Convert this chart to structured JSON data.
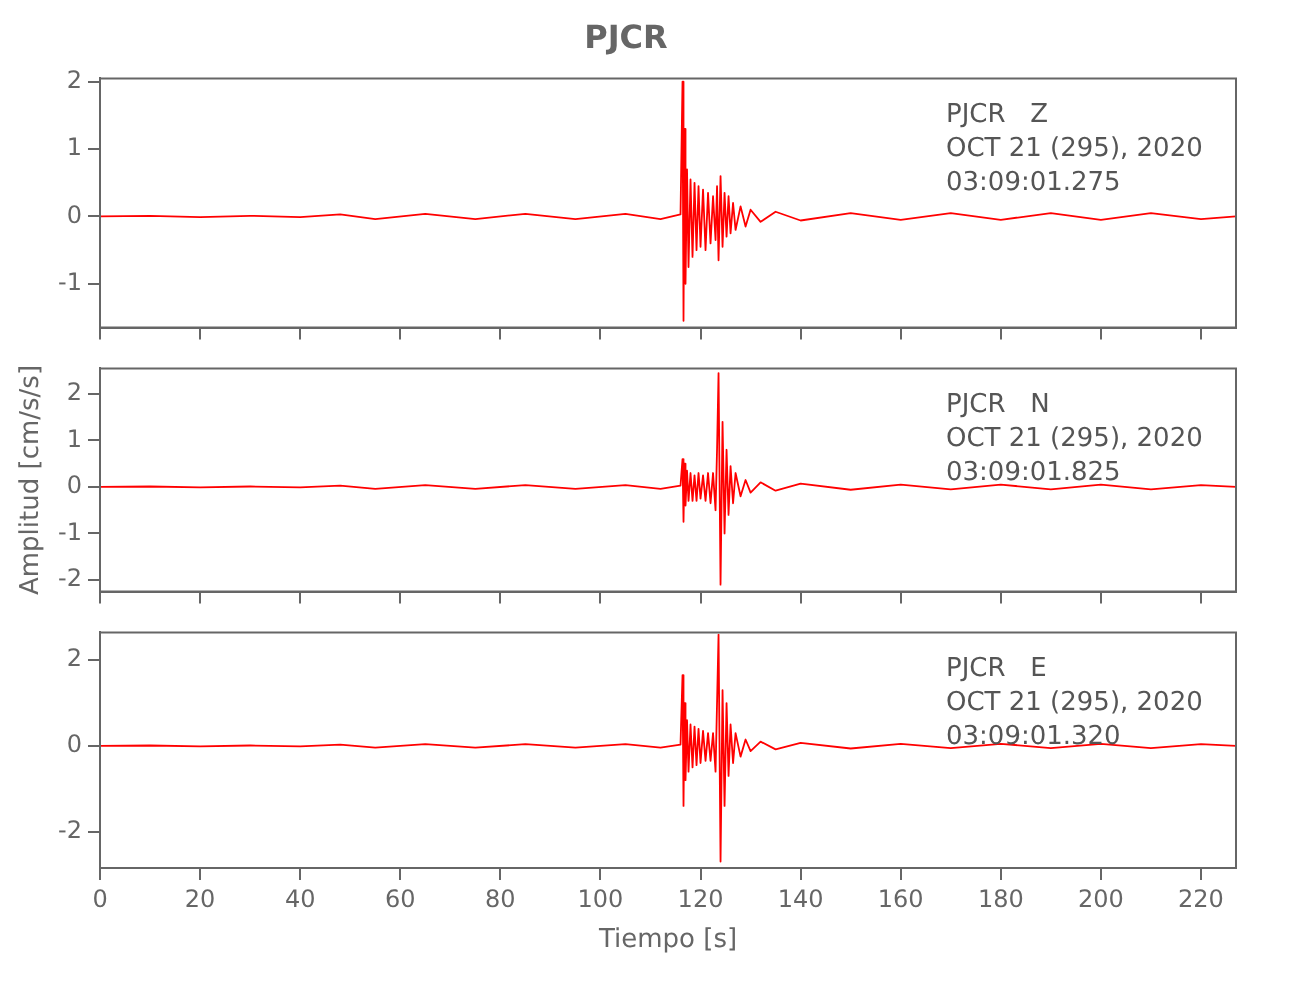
{
  "chart_data": [
    {
      "type": "line",
      "title": "PJCR",
      "annotations": [
        "PJCR   Z",
        "OCT 21 (295), 2020",
        "03:09:01.275"
      ],
      "color": "#ff0000",
      "xlim": [
        0,
        227
      ],
      "ylim": [
        -1.65,
        2.05
      ],
      "yticks": [
        -1,
        0,
        1,
        2
      ],
      "xticks": [
        {
          "value": 0,
          "label": null
        },
        {
          "value": 20,
          "label": null
        },
        {
          "value": 40,
          "label": null
        },
        {
          "value": 60,
          "label": null
        },
        {
          "value": 80,
          "label": null
        },
        {
          "value": 100,
          "label": null
        },
        {
          "value": 120,
          "label": null
        },
        {
          "value": 140,
          "label": null
        },
        {
          "value": 160,
          "label": null
        },
        {
          "value": 180,
          "label": null
        },
        {
          "value": 200,
          "label": null
        },
        {
          "value": 220,
          "label": null
        }
      ],
      "tick_labels": "y",
      "x": [
        0,
        10,
        20,
        30,
        40,
        48,
        55,
        65,
        75,
        85,
        95,
        105,
        112,
        116,
        116.4,
        116.6,
        116.8,
        117,
        117.3,
        117.6,
        118,
        118.4,
        118.8,
        119.2,
        119.6,
        120,
        120.5,
        121,
        121.5,
        122,
        122.5,
        123,
        123.3,
        123.6,
        124,
        124.4,
        124.8,
        125.2,
        125.6,
        126,
        126.5,
        127,
        128,
        129,
        130,
        132,
        135,
        140,
        150,
        160,
        170,
        180,
        190,
        200,
        210,
        220,
        227
      ],
      "values": [
        0,
        0.01,
        -0.01,
        0.01,
        -0.01,
        0.03,
        -0.04,
        0.04,
        -0.04,
        0.04,
        -0.04,
        0.04,
        -0.04,
        0.03,
        2.0,
        -1.55,
        1.3,
        -1.0,
        0.7,
        -0.75,
        0.55,
        -0.6,
        0.5,
        -0.5,
        0.45,
        -0.45,
        0.4,
        -0.5,
        0.35,
        -0.4,
        0.3,
        -0.35,
        0.45,
        -0.65,
        0.6,
        -0.45,
        0.35,
        -0.3,
        0.3,
        -0.25,
        0.2,
        -0.2,
        0.15,
        -0.15,
        0.1,
        -0.08,
        0.07,
        -0.06,
        0.05,
        -0.05,
        0.05,
        -0.05,
        0.05,
        -0.05,
        0.05,
        -0.04,
        0
      ]
    },
    {
      "type": "line",
      "ylabel": "Amplitud [cm/s/s]",
      "annotations": [
        "PJCR   N",
        "OCT 21 (295), 2020",
        "03:09:01.825"
      ],
      "color": "#ff0000",
      "xlim": [
        0,
        227
      ],
      "ylim": [
        -2.25,
        2.55
      ],
      "yticks": [
        -2,
        -1,
        0,
        1,
        2
      ],
      "xticks": [
        {
          "value": 0,
          "label": null
        },
        {
          "value": 20,
          "label": null
        },
        {
          "value": 40,
          "label": null
        },
        {
          "value": 60,
          "label": null
        },
        {
          "value": 80,
          "label": null
        },
        {
          "value": 100,
          "label": null
        },
        {
          "value": 120,
          "label": null
        },
        {
          "value": 140,
          "label": null
        },
        {
          "value": 160,
          "label": null
        },
        {
          "value": 180,
          "label": null
        },
        {
          "value": 200,
          "label": null
        },
        {
          "value": 220,
          "label": null
        }
      ],
      "tick_labels": "y",
      "x": [
        0,
        10,
        20,
        30,
        40,
        48,
        55,
        65,
        75,
        85,
        95,
        105,
        112,
        116,
        116.4,
        116.6,
        116.8,
        117,
        117.3,
        117.6,
        118,
        118.4,
        118.8,
        119.2,
        119.6,
        120,
        120.5,
        121,
        121.5,
        122,
        122.5,
        123,
        123.3,
        123.6,
        124,
        124.4,
        124.8,
        125.2,
        125.6,
        126,
        126.5,
        127,
        128,
        129,
        130,
        132,
        135,
        140,
        150,
        160,
        170,
        180,
        190,
        200,
        210,
        220,
        227
      ],
      "values": [
        0,
        0.01,
        -0.01,
        0.01,
        -0.01,
        0.03,
        -0.04,
        0.04,
        -0.04,
        0.04,
        -0.04,
        0.04,
        -0.04,
        0.03,
        0.6,
        -0.75,
        0.5,
        -0.4,
        0.35,
        -0.3,
        0.3,
        -0.3,
        0.25,
        -0.3,
        0.3,
        -0.25,
        0.25,
        -0.3,
        0.3,
        -0.35,
        0.3,
        -0.5,
        0.8,
        2.45,
        -2.1,
        1.4,
        -1.0,
        0.8,
        -0.6,
        0.45,
        -0.35,
        0.3,
        -0.2,
        0.15,
        -0.12,
        0.1,
        -0.08,
        0.07,
        -0.06,
        0.05,
        -0.05,
        0.05,
        -0.05,
        0.05,
        -0.05,
        0.04,
        0
      ]
    },
    {
      "type": "line",
      "xlabel": "Tiempo [s]",
      "annotations": [
        "PJCR   E",
        "OCT 21 (295), 2020",
        "03:09:01.320"
      ],
      "color": "#ff0000",
      "xlim": [
        0,
        227
      ],
      "ylim": [
        -2.85,
        2.65
      ],
      "yticks": [
        -2,
        0,
        2
      ],
      "xticks": [
        0,
        20,
        40,
        60,
        80,
        100,
        120,
        140,
        160,
        180,
        200,
        220
      ],
      "x": [
        0,
        10,
        20,
        30,
        40,
        48,
        55,
        65,
        75,
        85,
        95,
        105,
        112,
        116,
        116.4,
        116.6,
        116.8,
        117,
        117.3,
        117.6,
        118,
        118.4,
        118.8,
        119.2,
        119.6,
        120,
        120.5,
        121,
        121.5,
        122,
        122.5,
        123,
        123.3,
        123.6,
        124,
        124.4,
        124.8,
        125.2,
        125.6,
        126,
        126.5,
        127,
        128,
        129,
        130,
        132,
        135,
        140,
        150,
        160,
        170,
        180,
        190,
        200,
        210,
        220,
        227
      ],
      "values": [
        0,
        0.01,
        -0.01,
        0.01,
        -0.01,
        0.03,
        -0.04,
        0.04,
        -0.04,
        0.04,
        -0.04,
        0.04,
        -0.04,
        0.03,
        1.65,
        -1.4,
        1.0,
        -0.8,
        0.6,
        -0.6,
        0.5,
        -0.5,
        0.45,
        -0.45,
        0.4,
        -0.4,
        0.35,
        -0.35,
        0.3,
        -0.35,
        0.3,
        -0.6,
        1.0,
        2.6,
        -2.7,
        1.3,
        -1.4,
        1.0,
        -0.7,
        0.5,
        -0.4,
        0.3,
        -0.25,
        0.15,
        -0.12,
        0.1,
        -0.08,
        0.07,
        -0.06,
        0.05,
        -0.05,
        0.05,
        -0.05,
        0.05,
        -0.05,
        0.04,
        0
      ]
    }
  ]
}
